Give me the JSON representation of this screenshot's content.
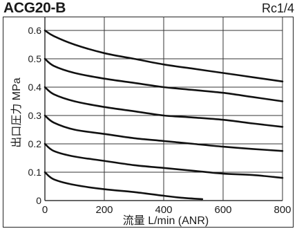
{
  "header": {
    "title": "ACG20-B",
    "port": "Rc1/4"
  },
  "chart_data": {
    "type": "line",
    "title": "ACG20-B",
    "subtitle": "Rc1/4",
    "xlabel": "流量 L/min (ANR)",
    "ylabel": "出口圧力 MPa",
    "xlim": [
      0,
      800
    ],
    "ylim": [
      0,
      0.65
    ],
    "xticks": [
      0,
      200,
      400,
      600,
      800
    ],
    "xtick_labels": [
      "0",
      "200",
      "400",
      "600",
      "800"
    ],
    "yticks": [
      0,
      0.1,
      0.2,
      0.3,
      0.4,
      0.5,
      0.6
    ],
    "ytick_labels": [
      "0",
      "0.1",
      "0.2",
      "0.3",
      "0.4",
      "0.5",
      "0.6"
    ],
    "grid": true,
    "series": [
      {
        "x": [
          0,
          30,
          100,
          200,
          300,
          400,
          500,
          600,
          700,
          800
        ],
        "y": [
          0.6,
          0.58,
          0.55,
          0.52,
          0.5,
          0.48,
          0.465,
          0.45,
          0.435,
          0.42
        ]
      },
      {
        "x": [
          0,
          30,
          100,
          200,
          300,
          400,
          500,
          600,
          700,
          800
        ],
        "y": [
          0.5,
          0.475,
          0.45,
          0.43,
          0.415,
          0.4,
          0.39,
          0.38,
          0.365,
          0.35
        ]
      },
      {
        "x": [
          0,
          30,
          100,
          200,
          300,
          400,
          500,
          600,
          700,
          800
        ],
        "y": [
          0.4,
          0.375,
          0.35,
          0.33,
          0.315,
          0.3,
          0.293,
          0.285,
          0.272,
          0.26
        ]
      },
      {
        "x": [
          0,
          30,
          100,
          200,
          300,
          400,
          500,
          600,
          700,
          800
        ],
        "y": [
          0.3,
          0.275,
          0.25,
          0.235,
          0.22,
          0.21,
          0.2,
          0.19,
          0.182,
          0.175
        ]
      },
      {
        "x": [
          0,
          30,
          100,
          200,
          300,
          400,
          500,
          600,
          700,
          800
        ],
        "y": [
          0.2,
          0.175,
          0.155,
          0.14,
          0.125,
          0.115,
          0.105,
          0.095,
          0.09,
          0.08
        ]
      },
      {
        "x": [
          0,
          30,
          100,
          200,
          300,
          400,
          460,
          530
        ],
        "y": [
          0.1,
          0.075,
          0.055,
          0.04,
          0.03,
          0.017,
          0.01,
          0.005
        ]
      }
    ]
  }
}
